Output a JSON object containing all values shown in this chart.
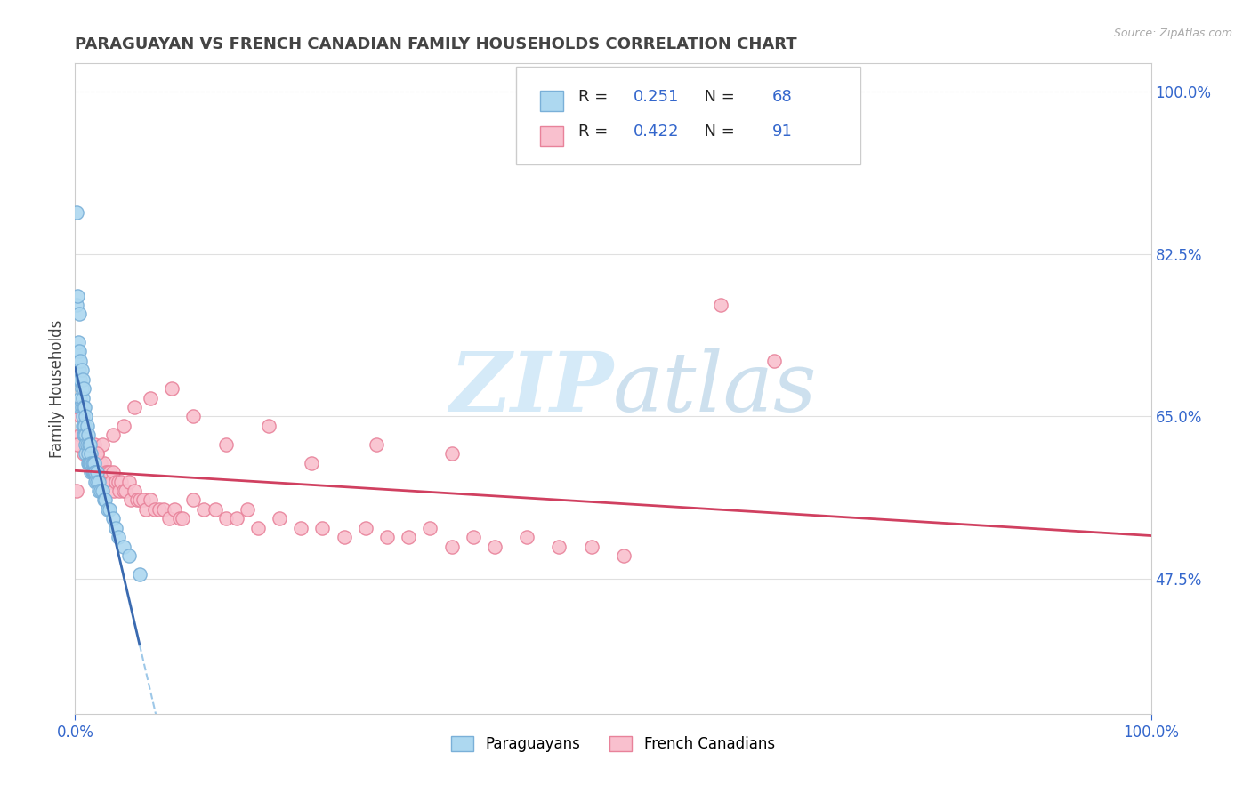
{
  "title": "PARAGUAYAN VS FRENCH CANADIAN FAMILY HOUSEHOLDS CORRELATION CHART",
  "source": "Source: ZipAtlas.com",
  "ylabel": "Family Households",
  "xmin": 0.0,
  "xmax": 1.0,
  "ymin": 0.33,
  "ymax": 1.03,
  "ytick_positions": [
    0.475,
    0.65,
    0.825,
    1.0
  ],
  "ytick_labels": [
    "47.5%",
    "65.0%",
    "82.5%",
    "100.0%"
  ],
  "paraguayan_R": 0.251,
  "paraguayan_N": 68,
  "french_canadian_R": 0.422,
  "french_canadian_N": 91,
  "blue_fill": "#add8f0",
  "blue_edge": "#7ab0d8",
  "blue_line_solid": "#3a6ab0",
  "blue_line_dash": "#9ec8e8",
  "pink_fill": "#f9c0ce",
  "pink_edge": "#e8829a",
  "pink_line": "#d04060",
  "legend_blue": "#3366cc",
  "text_color": "#444444",
  "grid_color": "#e0e0e0",
  "watermark_color": "#d5eaf8",
  "background_color": "#ffffff",
  "par_x": [
    0.001,
    0.001,
    0.002,
    0.002,
    0.003,
    0.003,
    0.003,
    0.004,
    0.004,
    0.004,
    0.005,
    0.005,
    0.005,
    0.005,
    0.006,
    0.006,
    0.006,
    0.007,
    0.007,
    0.007,
    0.007,
    0.008,
    0.008,
    0.008,
    0.008,
    0.009,
    0.009,
    0.009,
    0.01,
    0.01,
    0.01,
    0.01,
    0.011,
    0.011,
    0.012,
    0.012,
    0.012,
    0.013,
    0.013,
    0.014,
    0.014,
    0.015,
    0.015,
    0.015,
    0.016,
    0.016,
    0.017,
    0.017,
    0.018,
    0.018,
    0.019,
    0.019,
    0.02,
    0.02,
    0.022,
    0.022,
    0.024,
    0.025,
    0.027,
    0.028,
    0.03,
    0.032,
    0.035,
    0.038,
    0.04,
    0.045,
    0.05,
    0.06
  ],
  "par_y": [
    0.87,
    0.77,
    0.78,
    0.72,
    0.73,
    0.71,
    0.69,
    0.76,
    0.72,
    0.7,
    0.71,
    0.69,
    0.67,
    0.66,
    0.7,
    0.68,
    0.66,
    0.69,
    0.67,
    0.65,
    0.64,
    0.68,
    0.66,
    0.64,
    0.63,
    0.66,
    0.64,
    0.63,
    0.65,
    0.63,
    0.62,
    0.61,
    0.64,
    0.62,
    0.63,
    0.61,
    0.6,
    0.62,
    0.6,
    0.62,
    0.6,
    0.61,
    0.6,
    0.59,
    0.6,
    0.59,
    0.6,
    0.59,
    0.6,
    0.59,
    0.59,
    0.58,
    0.59,
    0.58,
    0.58,
    0.57,
    0.57,
    0.57,
    0.56,
    0.56,
    0.55,
    0.55,
    0.54,
    0.53,
    0.52,
    0.51,
    0.5,
    0.48
  ],
  "fc_x": [
    0.005,
    0.008,
    0.01,
    0.012,
    0.013,
    0.015,
    0.017,
    0.018,
    0.019,
    0.02,
    0.021,
    0.022,
    0.023,
    0.024,
    0.025,
    0.026,
    0.027,
    0.028,
    0.029,
    0.03,
    0.031,
    0.032,
    0.034,
    0.035,
    0.036,
    0.038,
    0.04,
    0.041,
    0.043,
    0.045,
    0.047,
    0.05,
    0.052,
    0.055,
    0.058,
    0.06,
    0.063,
    0.066,
    0.07,
    0.074,
    0.078,
    0.082,
    0.087,
    0.092,
    0.097,
    0.1,
    0.11,
    0.12,
    0.13,
    0.14,
    0.15,
    0.16,
    0.17,
    0.19,
    0.21,
    0.23,
    0.25,
    0.27,
    0.29,
    0.31,
    0.33,
    0.35,
    0.37,
    0.39,
    0.42,
    0.45,
    0.48,
    0.51,
    0.35,
    0.28,
    0.22,
    0.18,
    0.14,
    0.11,
    0.09,
    0.07,
    0.055,
    0.045,
    0.035,
    0.025,
    0.02,
    0.015,
    0.012,
    0.009,
    0.007,
    0.005,
    0.003,
    0.002,
    0.001,
    0.6,
    0.65
  ],
  "fc_y": [
    0.63,
    0.61,
    0.63,
    0.62,
    0.6,
    0.61,
    0.6,
    0.62,
    0.6,
    0.61,
    0.6,
    0.6,
    0.59,
    0.6,
    0.59,
    0.59,
    0.6,
    0.58,
    0.59,
    0.59,
    0.58,
    0.59,
    0.58,
    0.59,
    0.57,
    0.58,
    0.58,
    0.57,
    0.58,
    0.57,
    0.57,
    0.58,
    0.56,
    0.57,
    0.56,
    0.56,
    0.56,
    0.55,
    0.56,
    0.55,
    0.55,
    0.55,
    0.54,
    0.55,
    0.54,
    0.54,
    0.56,
    0.55,
    0.55,
    0.54,
    0.54,
    0.55,
    0.53,
    0.54,
    0.53,
    0.53,
    0.52,
    0.53,
    0.52,
    0.52,
    0.53,
    0.51,
    0.52,
    0.51,
    0.52,
    0.51,
    0.51,
    0.5,
    0.61,
    0.62,
    0.6,
    0.64,
    0.62,
    0.65,
    0.68,
    0.67,
    0.66,
    0.64,
    0.63,
    0.62,
    0.61,
    0.6,
    0.62,
    0.63,
    0.65,
    0.65,
    0.66,
    0.62,
    0.57,
    0.77,
    0.71
  ]
}
